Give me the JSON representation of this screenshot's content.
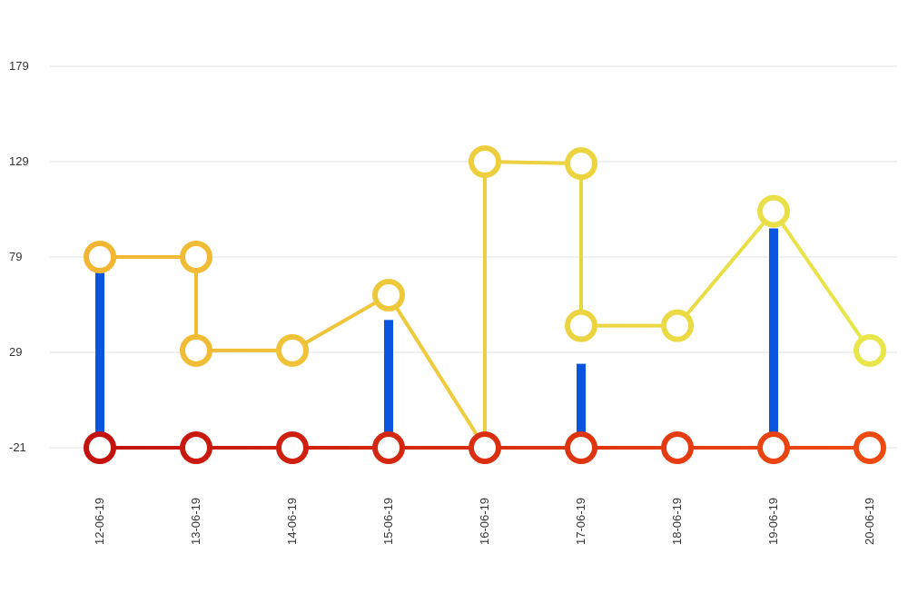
{
  "chart_data": {
    "type": "line",
    "categories": [
      "12-06-19",
      "13-06-19",
      "14-06-19",
      "15-06-19",
      "16-06-19",
      "17-06-19",
      "18-06-19",
      "19-06-19",
      "20-06-19"
    ],
    "yticks": [
      -21,
      29,
      79,
      129,
      179
    ],
    "ylim": [
      -21,
      179
    ],
    "grid": true,
    "series": [
      {
        "kind": "bar",
        "color": "#0a55e0",
        "values": [
          77,
          null,
          null,
          46,
          null,
          23,
          null,
          94,
          null
        ]
      },
      {
        "kind": "step-line",
        "color_start": "#f2b632",
        "color_end": "#e8e64a",
        "marker_start": "#f2b632",
        "marker_end": "#e8e64a",
        "points": [
          {
            "x": "12-06-19",
            "y": 79
          },
          {
            "x": "13-06-19",
            "y": 79
          },
          {
            "x": "13-06-19",
            "y": 30
          },
          {
            "x": "14-06-19",
            "y": 30
          },
          {
            "x": "15-06-19",
            "y": 59
          },
          {
            "x": "16-06-19",
            "y": -21
          },
          {
            "x": "16-06-19",
            "y": 129
          },
          {
            "x": "17-06-19",
            "y": 128
          },
          {
            "x": "17-06-19",
            "y": 43
          },
          {
            "x": "18-06-19",
            "y": 43
          },
          {
            "x": "19-06-19",
            "y": 103
          },
          {
            "x": "20-06-19",
            "y": 30
          }
        ],
        "markers": [
          {
            "x": "12-06-19",
            "y": 79
          },
          {
            "x": "13-06-19",
            "y": 79
          },
          {
            "x": "13-06-19",
            "y": 30
          },
          {
            "x": "14-06-19",
            "y": 30
          },
          {
            "x": "15-06-19",
            "y": 59
          },
          {
            "x": "16-06-19",
            "y": 129
          },
          {
            "x": "17-06-19",
            "y": 128
          },
          {
            "x": "17-06-19",
            "y": 43
          },
          {
            "x": "18-06-19",
            "y": 43
          },
          {
            "x": "19-06-19",
            "y": 103
          },
          {
            "x": "20-06-19",
            "y": 30
          }
        ]
      },
      {
        "kind": "line",
        "color_start": "#c4120e",
        "color_end": "#ee4a10",
        "values": [
          -21,
          -21,
          -21,
          -21,
          -21,
          -21,
          -21,
          -21,
          -21
        ]
      }
    ]
  }
}
